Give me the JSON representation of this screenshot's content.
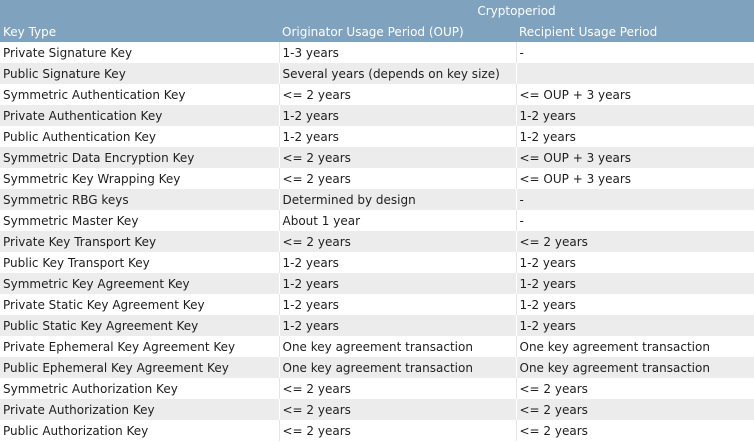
{
  "header": {
    "group_label": "Cryptoperiod",
    "col_key_type": "Key Type",
    "col_oup": "Originator Usage Period (OUP)",
    "col_rup": "Recipient Usage Period"
  },
  "rows": [
    [
      "Private Signature Key",
      "1-3 years",
      "-"
    ],
    [
      "Public Signature Key",
      "Several years (depends on key size)",
      ""
    ],
    [
      "Symmetric Authentication Key",
      "<= 2 years",
      "<= OUP + 3 years"
    ],
    [
      "Private Authentication Key",
      "1-2 years",
      "1-2 years"
    ],
    [
      "Public Authentication Key",
      "1-2 years",
      "1-2 years"
    ],
    [
      "Symmetric Data Encryption Key",
      "<= 2 years",
      "<= OUP + 3 years"
    ],
    [
      "Symmetric Key Wrapping Key",
      "<= 2 years",
      "<= OUP + 3 years"
    ],
    [
      "Symmetric RBG keys",
      "Determined by design",
      "-"
    ],
    [
      "Symmetric Master Key",
      "About 1 year",
      "-"
    ],
    [
      "Private Key Transport Key",
      "<= 2 years",
      "<= 2 years"
    ],
    [
      "Public Key Transport Key",
      "1-2 years",
      "1-2 years"
    ],
    [
      "Symmetric Key Agreement Key",
      "1-2 years",
      "1-2 years"
    ],
    [
      "Private Static Key Agreement Key",
      "1-2 years",
      "1-2 years"
    ],
    [
      "Public Static Key Agreement Key",
      "1-2 years",
      "1-2 years"
    ],
    [
      "Private Ephemeral Key Agreement Key",
      "One key agreement transaction",
      "One key agreement transaction"
    ],
    [
      "Public Ephemeral Key Agreement Key",
      "One key agreement transaction",
      "One key agreement transaction"
    ],
    [
      "Symmetric Authorization Key",
      "<= 2 years",
      "<= 2 years"
    ],
    [
      "Private Authorization Key",
      "<= 2 years",
      "<= 2 years"
    ],
    [
      "Public Authorization Key",
      "<= 2 years",
      "<= 2 years"
    ]
  ]
}
